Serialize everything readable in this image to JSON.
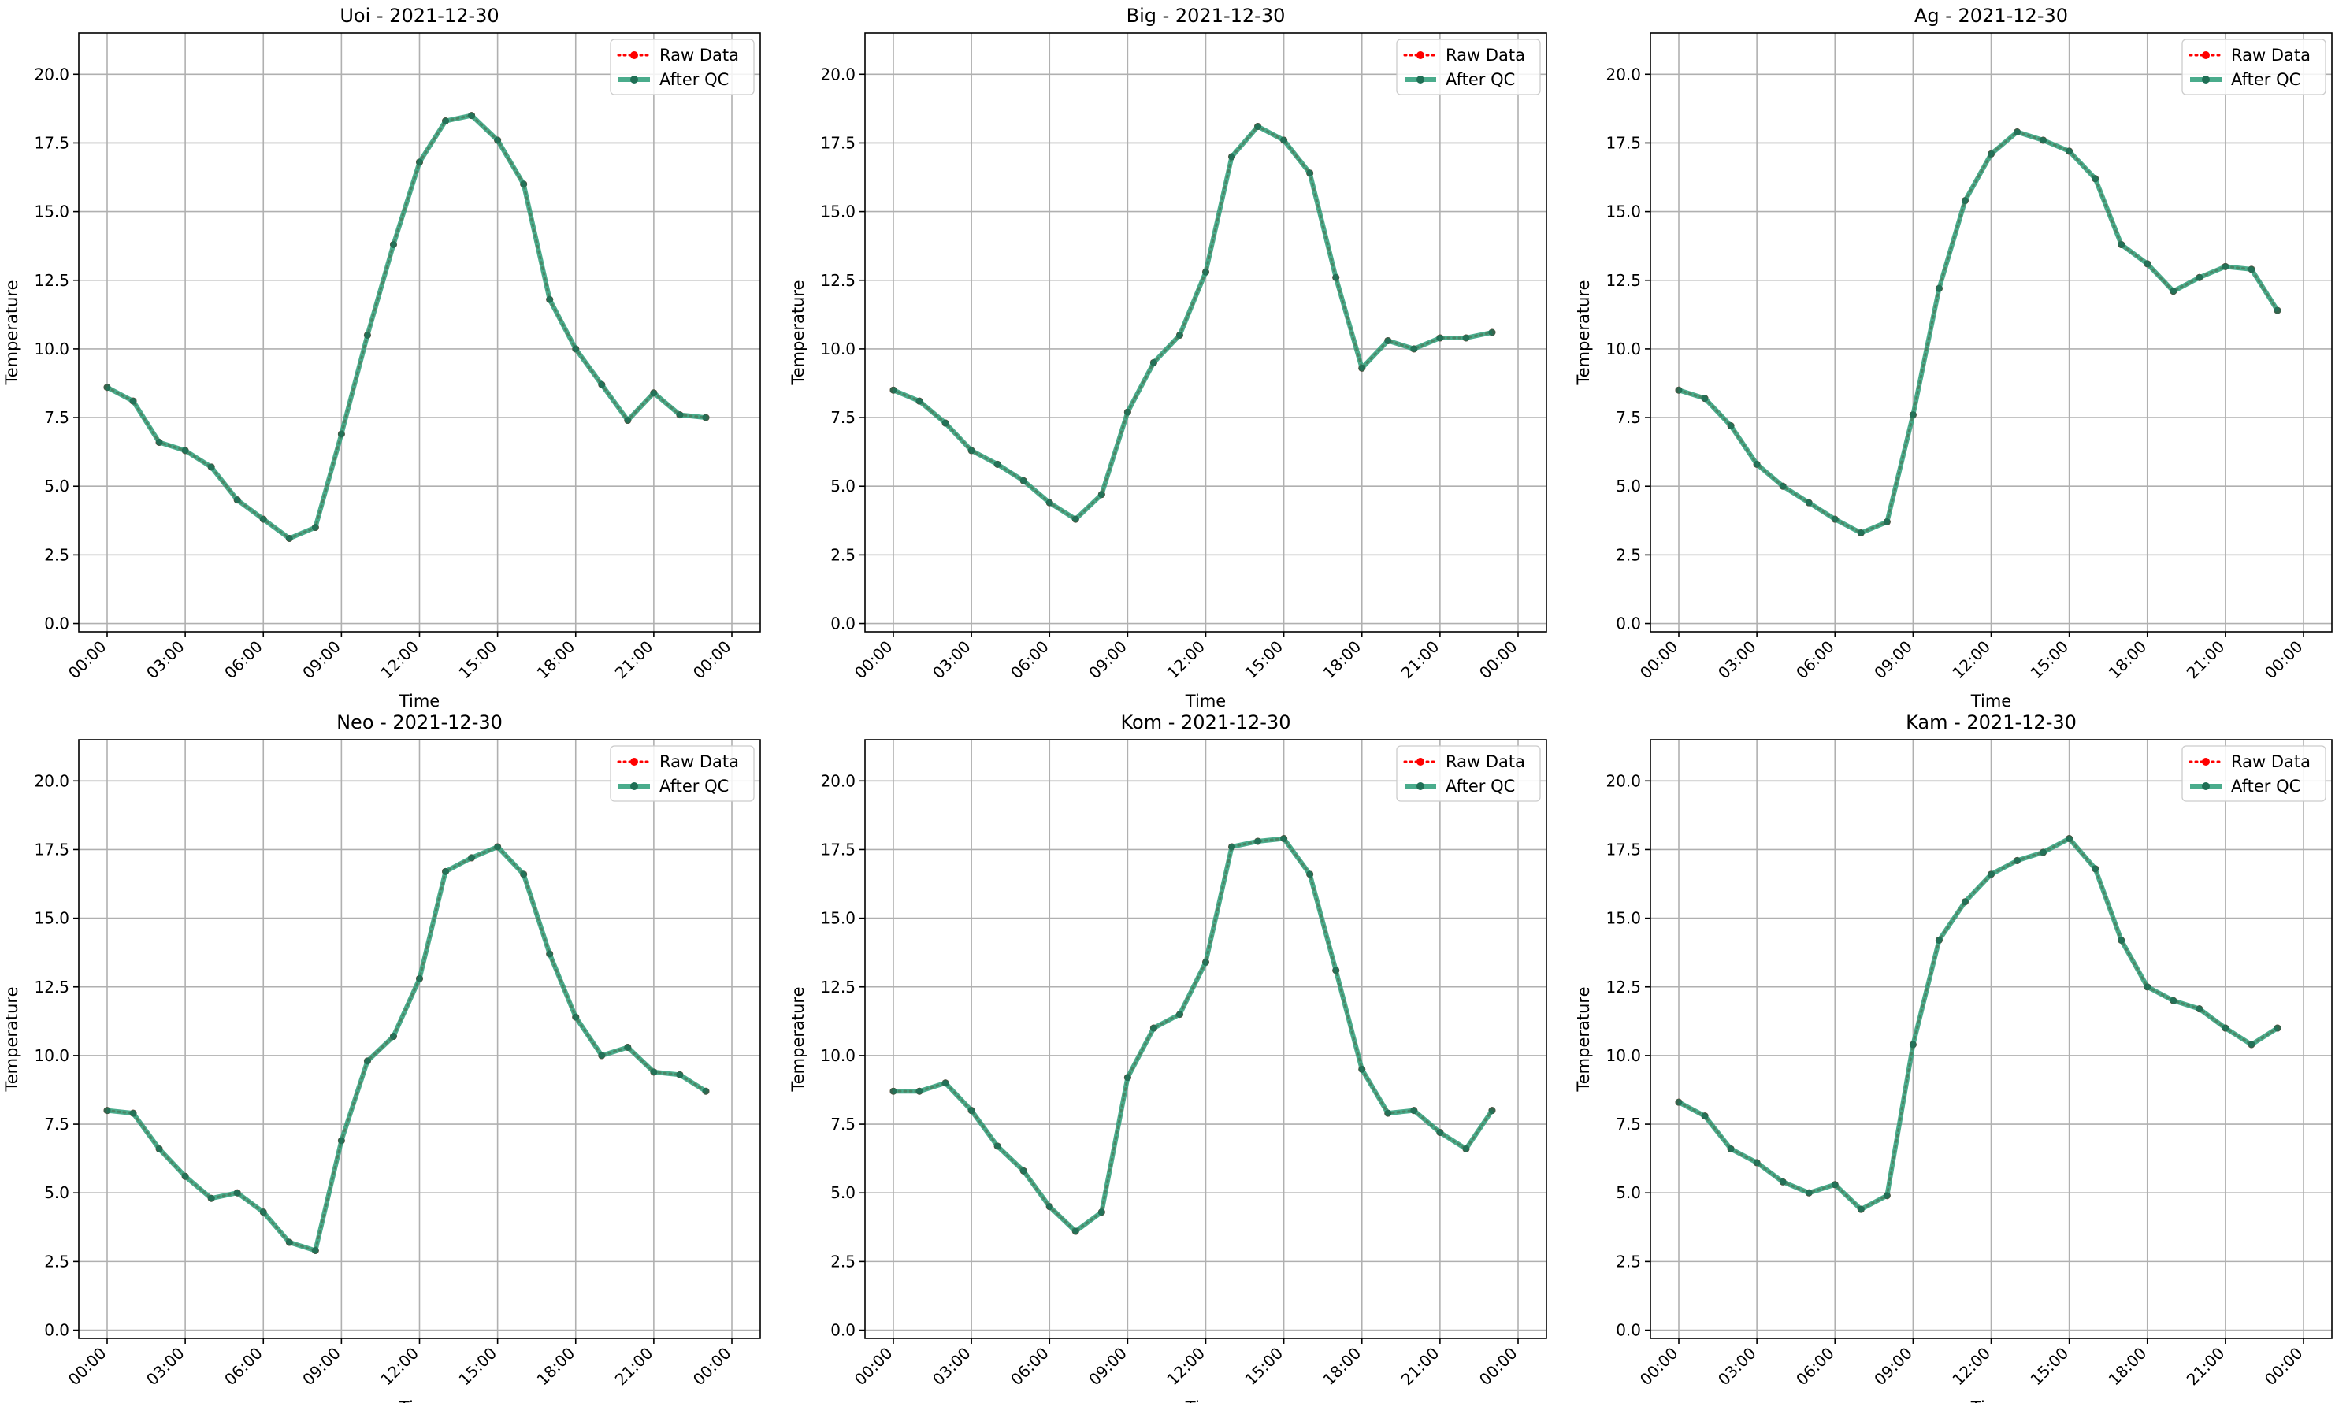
{
  "figure": {
    "raw_color": "#ff0000",
    "qc_color": "#2a9d78",
    "grid_color": "#b0b0b0"
  },
  "chart_data": [
    {
      "type": "line",
      "title": "Uoi - 2021-12-30",
      "xlabel": "Time",
      "ylabel": "Temperature",
      "x": [
        "00:00",
        "01:00",
        "02:00",
        "03:00",
        "04:00",
        "05:00",
        "06:00",
        "07:00",
        "08:00",
        "09:00",
        "10:00",
        "11:00",
        "12:00",
        "13:00",
        "14:00",
        "15:00",
        "16:00",
        "17:00",
        "18:00",
        "19:00",
        "20:00",
        "21:00",
        "22:00",
        "23:00"
      ],
      "xticks": [
        "00:00",
        "03:00",
        "06:00",
        "09:00",
        "12:00",
        "15:00",
        "18:00",
        "21:00",
        "00:00"
      ],
      "yticks": [
        "0.0",
        "2.5",
        "5.0",
        "7.5",
        "10.0",
        "12.5",
        "15.0",
        "17.5",
        "20.0"
      ],
      "ylim": [
        -0.3,
        21.5
      ],
      "grid": true,
      "legend_position": "top-right",
      "series": [
        {
          "name": "Raw Data",
          "values": [
            8.6,
            8.1,
            6.6,
            6.3,
            5.7,
            4.5,
            3.8,
            3.1,
            3.5,
            6.9,
            10.5,
            13.8,
            16.8,
            18.3,
            18.5,
            17.6,
            16.0,
            11.8,
            10.0,
            8.7,
            7.4,
            8.4,
            7.6,
            7.5
          ]
        },
        {
          "name": "After QC",
          "values": [
            8.6,
            8.1,
            6.6,
            6.3,
            5.7,
            4.5,
            3.8,
            3.1,
            3.5,
            6.9,
            10.5,
            13.8,
            16.8,
            18.3,
            18.5,
            17.6,
            16.0,
            11.8,
            10.0,
            8.7,
            7.4,
            8.4,
            7.6,
            7.5
          ]
        }
      ]
    },
    {
      "type": "line",
      "title": "Big - 2021-12-30",
      "xlabel": "Time",
      "ylabel": "Temperature",
      "x": [
        "00:00",
        "01:00",
        "02:00",
        "03:00",
        "04:00",
        "05:00",
        "06:00",
        "07:00",
        "08:00",
        "09:00",
        "10:00",
        "11:00",
        "12:00",
        "13:00",
        "14:00",
        "15:00",
        "16:00",
        "17:00",
        "18:00",
        "19:00",
        "20:00",
        "21:00",
        "22:00",
        "23:00"
      ],
      "xticks": [
        "00:00",
        "03:00",
        "06:00",
        "09:00",
        "12:00",
        "15:00",
        "18:00",
        "21:00",
        "00:00"
      ],
      "yticks": [
        "0.0",
        "2.5",
        "5.0",
        "7.5",
        "10.0",
        "12.5",
        "15.0",
        "17.5",
        "20.0"
      ],
      "ylim": [
        -0.3,
        21.5
      ],
      "grid": true,
      "legend_position": "top-right",
      "series": [
        {
          "name": "Raw Data",
          "values": [
            8.5,
            8.1,
            7.3,
            6.3,
            5.8,
            5.2,
            4.4,
            3.8,
            4.7,
            7.7,
            9.5,
            10.5,
            12.8,
            17.0,
            18.1,
            17.6,
            16.4,
            12.6,
            9.3,
            10.3,
            10.0,
            10.4,
            10.4,
            10.6
          ]
        },
        {
          "name": "After QC",
          "values": [
            8.5,
            8.1,
            7.3,
            6.3,
            5.8,
            5.2,
            4.4,
            3.8,
            4.7,
            7.7,
            9.5,
            10.5,
            12.8,
            17.0,
            18.1,
            17.6,
            16.4,
            12.6,
            9.3,
            10.3,
            10.0,
            10.4,
            10.4,
            10.6
          ]
        }
      ]
    },
    {
      "type": "line",
      "title": "Ag - 2021-12-30",
      "xlabel": "Time",
      "ylabel": "Temperature",
      "x": [
        "00:00",
        "01:00",
        "02:00",
        "03:00",
        "04:00",
        "05:00",
        "06:00",
        "07:00",
        "08:00",
        "09:00",
        "10:00",
        "11:00",
        "12:00",
        "13:00",
        "14:00",
        "15:00",
        "16:00",
        "17:00",
        "18:00",
        "19:00",
        "20:00",
        "21:00",
        "22:00",
        "23:00"
      ],
      "xticks": [
        "00:00",
        "03:00",
        "06:00",
        "09:00",
        "12:00",
        "15:00",
        "18:00",
        "21:00",
        "00:00"
      ],
      "yticks": [
        "0.0",
        "2.5",
        "5.0",
        "7.5",
        "10.0",
        "12.5",
        "15.0",
        "17.5",
        "20.0"
      ],
      "ylim": [
        -0.3,
        21.5
      ],
      "grid": true,
      "legend_position": "top-right",
      "series": [
        {
          "name": "Raw Data",
          "values": [
            8.5,
            8.2,
            7.2,
            5.8,
            5.0,
            4.4,
            3.8,
            3.3,
            3.7,
            7.6,
            12.2,
            15.4,
            17.1,
            17.9,
            17.6,
            17.2,
            16.2,
            13.8,
            13.1,
            12.1,
            12.6,
            13.0,
            12.9,
            11.4
          ]
        },
        {
          "name": "After QC",
          "values": [
            8.5,
            8.2,
            7.2,
            5.8,
            5.0,
            4.4,
            3.8,
            3.3,
            3.7,
            7.6,
            12.2,
            15.4,
            17.1,
            17.9,
            17.6,
            17.2,
            16.2,
            13.8,
            13.1,
            12.1,
            12.6,
            13.0,
            12.9,
            11.4
          ]
        }
      ]
    },
    {
      "type": "line",
      "title": "Neo - 2021-12-30",
      "xlabel": "Time",
      "ylabel": "Temperature",
      "x": [
        "00:00",
        "01:00",
        "02:00",
        "03:00",
        "04:00",
        "05:00",
        "06:00",
        "07:00",
        "08:00",
        "09:00",
        "10:00",
        "11:00",
        "12:00",
        "13:00",
        "14:00",
        "15:00",
        "16:00",
        "17:00",
        "18:00",
        "19:00",
        "20:00",
        "21:00",
        "22:00",
        "23:00"
      ],
      "xticks": [
        "00:00",
        "03:00",
        "06:00",
        "09:00",
        "12:00",
        "15:00",
        "18:00",
        "21:00",
        "00:00"
      ],
      "yticks": [
        "0.0",
        "2.5",
        "5.0",
        "7.5",
        "10.0",
        "12.5",
        "15.0",
        "17.5",
        "20.0"
      ],
      "ylim": [
        -0.3,
        21.5
      ],
      "grid": true,
      "legend_position": "top-right",
      "series": [
        {
          "name": "Raw Data",
          "values": [
            8.0,
            7.9,
            6.6,
            5.6,
            4.8,
            5.0,
            4.3,
            3.2,
            2.9,
            6.9,
            9.8,
            10.7,
            12.8,
            16.7,
            17.2,
            17.6,
            16.6,
            13.7,
            11.4,
            10.0,
            10.3,
            9.4,
            9.3,
            8.7
          ]
        },
        {
          "name": "After QC",
          "values": [
            8.0,
            7.9,
            6.6,
            5.6,
            4.8,
            5.0,
            4.3,
            3.2,
            2.9,
            6.9,
            9.8,
            10.7,
            12.8,
            16.7,
            17.2,
            17.6,
            16.6,
            13.7,
            11.4,
            10.0,
            10.3,
            9.4,
            9.3,
            8.7
          ]
        }
      ]
    },
    {
      "type": "line",
      "title": "Kom - 2021-12-30",
      "xlabel": "Time",
      "ylabel": "Temperature",
      "x": [
        "00:00",
        "01:00",
        "02:00",
        "03:00",
        "04:00",
        "05:00",
        "06:00",
        "07:00",
        "08:00",
        "09:00",
        "10:00",
        "11:00",
        "12:00",
        "13:00",
        "14:00",
        "15:00",
        "16:00",
        "17:00",
        "18:00",
        "19:00",
        "20:00",
        "21:00",
        "22:00",
        "23:00"
      ],
      "xticks": [
        "00:00",
        "03:00",
        "06:00",
        "09:00",
        "12:00",
        "15:00",
        "18:00",
        "21:00",
        "00:00"
      ],
      "yticks": [
        "0.0",
        "2.5",
        "5.0",
        "7.5",
        "10.0",
        "12.5",
        "15.0",
        "17.5",
        "20.0"
      ],
      "ylim": [
        -0.3,
        21.5
      ],
      "grid": true,
      "legend_position": "top-right",
      "series": [
        {
          "name": "Raw Data",
          "values": [
            8.7,
            8.7,
            9.0,
            8.0,
            6.7,
            5.8,
            4.5,
            3.6,
            4.3,
            9.2,
            11.0,
            11.5,
            13.4,
            17.6,
            17.8,
            17.9,
            16.6,
            13.1,
            9.5,
            7.9,
            8.0,
            7.2,
            6.6,
            8.0
          ]
        },
        {
          "name": "After QC",
          "values": [
            8.7,
            8.7,
            9.0,
            8.0,
            6.7,
            5.8,
            4.5,
            3.6,
            4.3,
            9.2,
            11.0,
            11.5,
            13.4,
            17.6,
            17.8,
            17.9,
            16.6,
            13.1,
            9.5,
            7.9,
            8.0,
            7.2,
            6.6,
            8.0
          ]
        }
      ]
    },
    {
      "type": "line",
      "title": "Kam - 2021-12-30",
      "xlabel": "Time",
      "ylabel": "Temperature",
      "x": [
        "00:00",
        "01:00",
        "02:00",
        "03:00",
        "04:00",
        "05:00",
        "06:00",
        "07:00",
        "08:00",
        "09:00",
        "10:00",
        "11:00",
        "12:00",
        "13:00",
        "14:00",
        "15:00",
        "16:00",
        "17:00",
        "18:00",
        "19:00",
        "20:00",
        "21:00",
        "22:00",
        "23:00"
      ],
      "xticks": [
        "00:00",
        "03:00",
        "06:00",
        "09:00",
        "12:00",
        "15:00",
        "18:00",
        "21:00",
        "00:00"
      ],
      "yticks": [
        "0.0",
        "2.5",
        "5.0",
        "7.5",
        "10.0",
        "12.5",
        "15.0",
        "17.5",
        "20.0"
      ],
      "ylim": [
        -0.3,
        21.5
      ],
      "grid": true,
      "legend_position": "top-right",
      "series": [
        {
          "name": "Raw Data",
          "values": [
            8.3,
            7.8,
            6.6,
            6.1,
            5.4,
            5.0,
            5.3,
            4.4,
            4.9,
            10.4,
            14.2,
            15.6,
            16.6,
            17.1,
            17.4,
            17.9,
            16.8,
            14.2,
            12.5,
            12.0,
            11.7,
            11.0,
            10.4,
            11.0
          ]
        },
        {
          "name": "After QC",
          "values": [
            8.3,
            7.8,
            6.6,
            6.1,
            5.4,
            5.0,
            5.3,
            4.4,
            4.9,
            10.4,
            14.2,
            15.6,
            16.6,
            17.1,
            17.4,
            17.9,
            16.8,
            14.2,
            12.5,
            12.0,
            11.7,
            11.0,
            10.4,
            11.0
          ]
        }
      ]
    }
  ]
}
